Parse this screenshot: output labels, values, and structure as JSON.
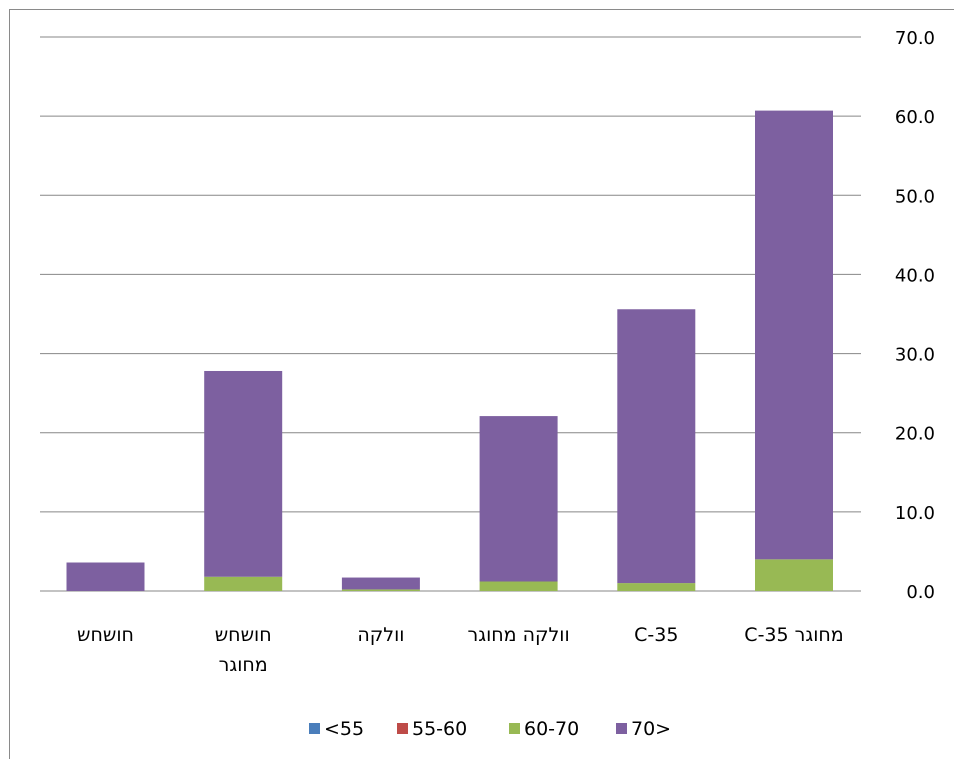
{
  "chart_data": {
    "type": "bar",
    "stacked": true,
    "title": "",
    "xlabel": "",
    "ylabel": "",
    "ylim": [
      0,
      70
    ],
    "yticks": [
      "0.0",
      "10.0",
      "20.0",
      "30.0",
      "40.0",
      "50.0",
      "60.0",
      "70.0"
    ],
    "y_axis_side": "right",
    "grid": true,
    "legend_position": "bottom",
    "categories": [
      [
        "מחוגר C-35"
      ],
      [
        "C-35"
      ],
      [
        "וולקה מחוגר"
      ],
      [
        "וולקה"
      ],
      [
        "חושחש",
        "מחוגר"
      ],
      [
        "חושחש"
      ]
    ],
    "series": [
      {
        "name": "<55",
        "color": "#4a7ebb",
        "values": [
          0,
          0,
          0,
          0,
          0,
          0
        ]
      },
      {
        "name": "55-60",
        "color": "#be4b48",
        "values": [
          0,
          0,
          0,
          0,
          0,
          0
        ]
      },
      {
        "name": "60-70",
        "color": "#98b954",
        "values": [
          4.0,
          1.0,
          1.2,
          0.2,
          1.8,
          0
        ]
      },
      {
        "name": "70>",
        "color": "#7d60a0",
        "values": [
          56.7,
          34.6,
          20.9,
          1.5,
          26.0,
          3.6
        ]
      }
    ]
  }
}
